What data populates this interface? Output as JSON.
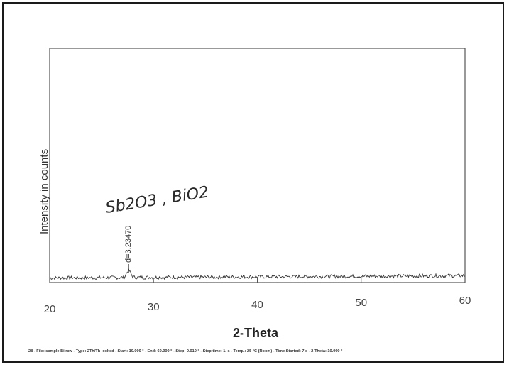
{
  "chart_data": {
    "type": "line",
    "xlabel": "2-Theta",
    "ylabel": "Intensity in counts",
    "xlim": [
      20,
      60
    ],
    "x_ticks": [
      20,
      30,
      40,
      50,
      60
    ],
    "grid": false,
    "peaks": [
      {
        "x": 27.6,
        "label": "d=3.23470"
      }
    ],
    "annotations": {
      "handwritten": "Sb2O3 , BiO2"
    },
    "footer": "28 - File: sample Bi.raw - Type: 2Th/Th locked - Start: 10.000 ° - End: 60.000 ° - Step: 0.010 ° - Step time: 1. s - Temp.: 25 °C (Room) - Time Started: 7 s - 2-Theta: 10.000 °"
  }
}
